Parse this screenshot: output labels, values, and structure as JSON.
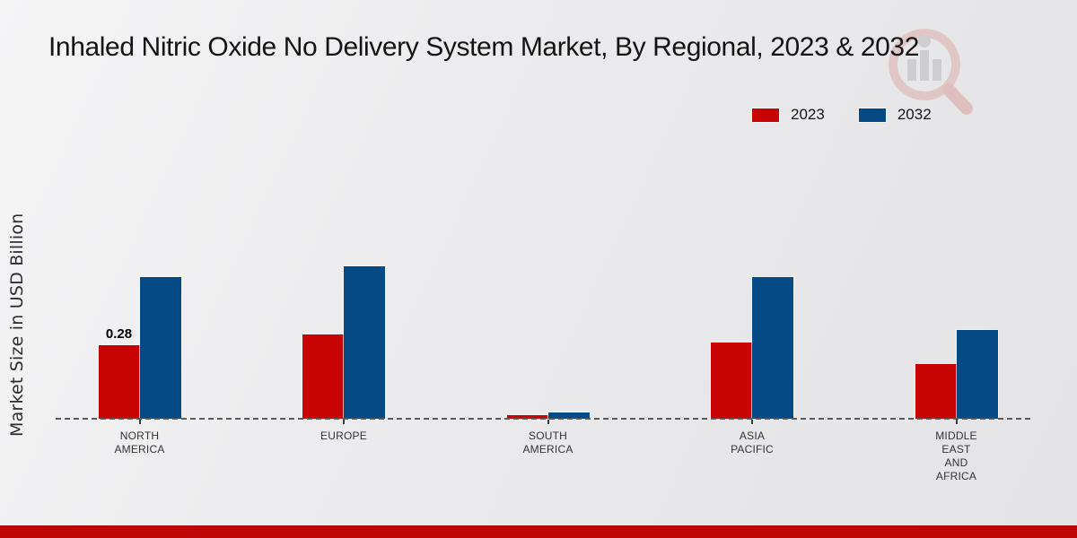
{
  "page": {
    "footer_color": "#bf0707",
    "background_color": "#ebebed"
  },
  "legend": [
    {
      "label": "2023",
      "color": "#c80303"
    },
    {
      "label": "2032",
      "color": "#064a85"
    }
  ],
  "chart_data": {
    "type": "bar",
    "title": "Inhaled Nitric Oxide No Delivery System Market, By Regional, 2023 & 2032",
    "ylabel": "Market Size in USD Billion",
    "xlabel": "",
    "categories": [
      "NORTH AMERICA",
      "EUROPE",
      "SOUTH AMERICA",
      "ASIA PACIFIC",
      "MIDDLE EAST AND AFRICA"
    ],
    "category_lines": [
      [
        "NORTH",
        "AMERICA"
      ],
      [
        "EUROPE"
      ],
      [
        "SOUTH",
        "AMERICA"
      ],
      [
        "ASIA",
        "PACIFIC"
      ],
      [
        "MIDDLE",
        "EAST",
        "AND",
        "AFRICA"
      ]
    ],
    "series": [
      {
        "name": "2023",
        "color": "#c80303",
        "values": [
          0.28,
          0.32,
          0.015,
          0.29,
          0.21
        ]
      },
      {
        "name": "2032",
        "color": "#064a85",
        "values": [
          0.54,
          0.58,
          0.025,
          0.54,
          0.34
        ]
      }
    ],
    "annotations": [
      {
        "series": "2023",
        "category": "NORTH AMERICA",
        "text": "0.28"
      }
    ],
    "ylim": [
      0,
      0.65
    ],
    "grid": false,
    "baseline_style": "dashed",
    "legend_position": "top-right"
  }
}
